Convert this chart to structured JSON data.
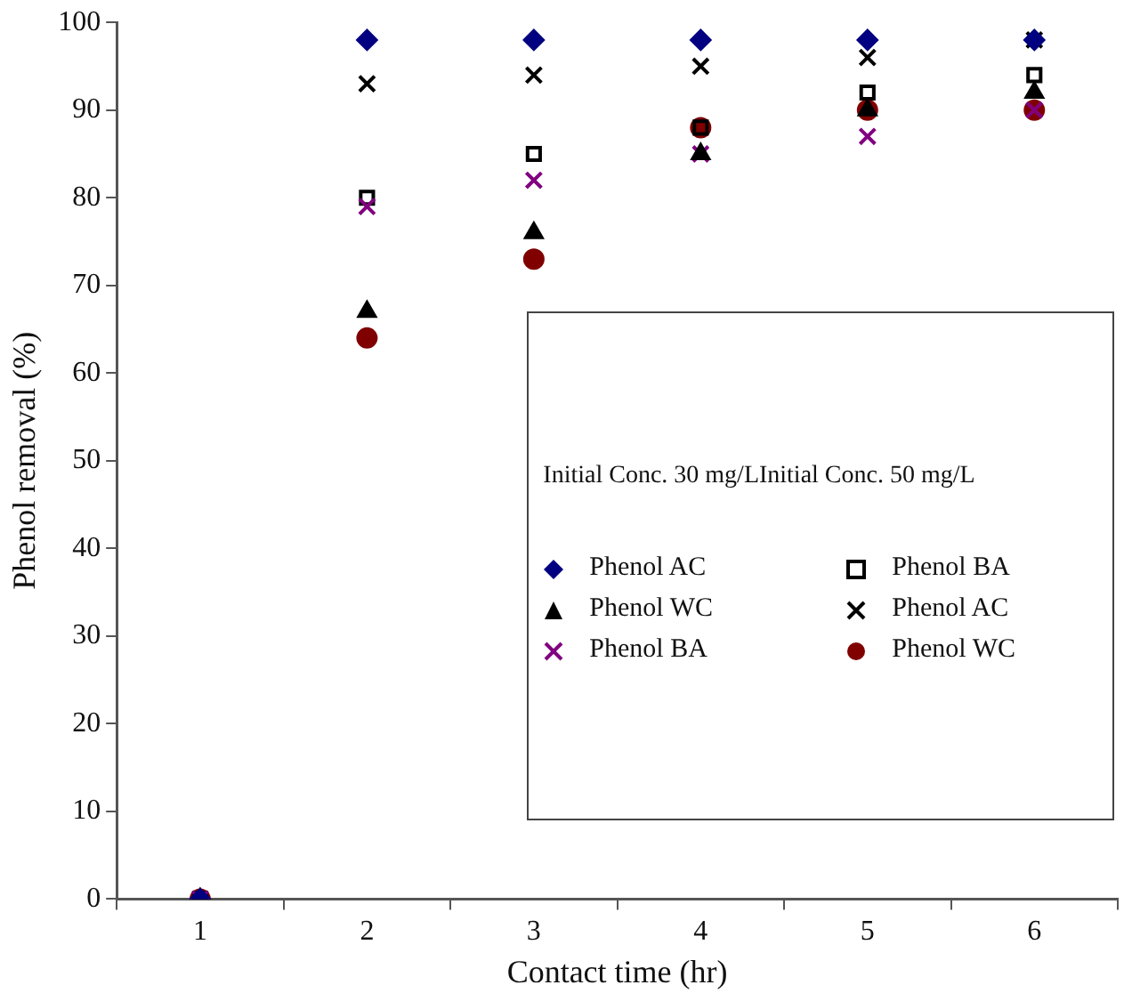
{
  "chart_data": {
    "type": "scatter",
    "xlabel": "Contact time (hr)",
    "ylabel": "Phenol removal (%)",
    "categories": [
      "1",
      "2",
      "3",
      "4",
      "5",
      "6"
    ],
    "ylim": [
      0,
      100
    ],
    "yticks": [
      0,
      10,
      20,
      30,
      40,
      50,
      60,
      70,
      80,
      90,
      100
    ],
    "grid": false,
    "legend": "right",
    "legend_title": "Initial Conc. 30 mg/LInitial Conc. 50 mg/L",
    "series": [
      {
        "name": "Phenol AC",
        "color": "#000080",
        "marker": "diamond",
        "values": [
          0,
          98,
          98,
          98,
          98,
          98
        ]
      },
      {
        "name": "Phenol WC",
        "color": "#000000",
        "marker": "triangle",
        "values": [
          0,
          67,
          76,
          85,
          90,
          92
        ]
      },
      {
        "name": "Phenol BA",
        "color": "#800080",
        "marker": "cross",
        "values": [
          0,
          79,
          82,
          85,
          87,
          90
        ]
      },
      {
        "name": "Phenol BA",
        "color": "#000000",
        "marker": "square",
        "values": [
          0,
          80,
          85,
          88,
          92,
          94
        ]
      },
      {
        "name": "Phenol AC",
        "color": "#000000",
        "marker": "cross",
        "values": [
          0,
          93,
          94,
          95,
          96,
          98
        ]
      },
      {
        "name": "Phenol WC",
        "color": "#800000",
        "marker": "circle",
        "values": [
          0,
          64,
          73,
          88,
          90,
          90
        ]
      }
    ]
  }
}
